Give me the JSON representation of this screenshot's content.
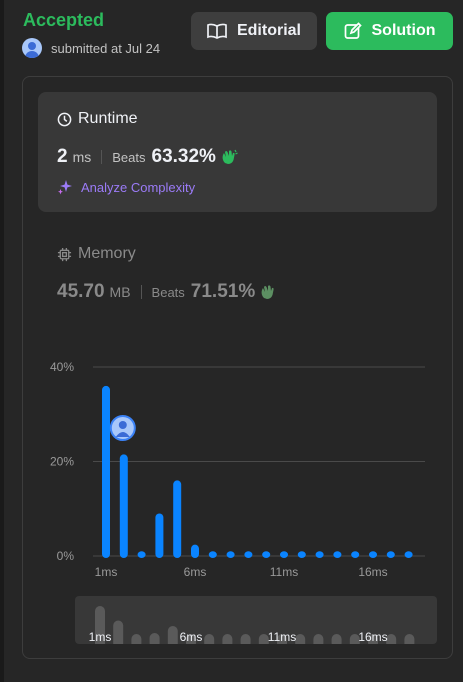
{
  "header": {
    "status": "Accepted",
    "submitted_text": "submitted at Jul 24",
    "editorial_label": "Editorial",
    "solution_label": "Solution"
  },
  "runtime": {
    "title": "Runtime",
    "value": "2",
    "unit": "ms",
    "beats_label": "Beats",
    "beats_value": "63.32%",
    "analyze_label": "Analyze Complexity"
  },
  "memory": {
    "title": "Memory",
    "value": "45.70",
    "unit": "MB",
    "beats_label": "Beats",
    "beats_value": "71.51%"
  },
  "colors": {
    "accepted": "#2cbb5d",
    "bar": "#0a84ff",
    "analyze": "#9b7bf7"
  },
  "chart_data": {
    "type": "bar",
    "x": [
      1,
      2,
      3,
      4,
      5,
      6,
      7,
      8,
      9,
      10,
      11,
      12,
      13,
      14,
      15,
      16,
      17,
      18
    ],
    "values": [
      36,
      21.5,
      1,
      9,
      16,
      2.4,
      1,
      1,
      1,
      1,
      1,
      1,
      1,
      1,
      1,
      1,
      1,
      1
    ],
    "ytick_labels": [
      "0%",
      "20%",
      "40%"
    ],
    "xtick_labels": [
      "1ms",
      "6ms",
      "11ms",
      "16ms"
    ],
    "ylim": [
      0,
      40
    ],
    "highlight_x": 2,
    "grid": true
  },
  "minimap": {
    "xtick_labels": [
      "1ms",
      "6ms",
      "11ms",
      "16ms"
    ]
  }
}
